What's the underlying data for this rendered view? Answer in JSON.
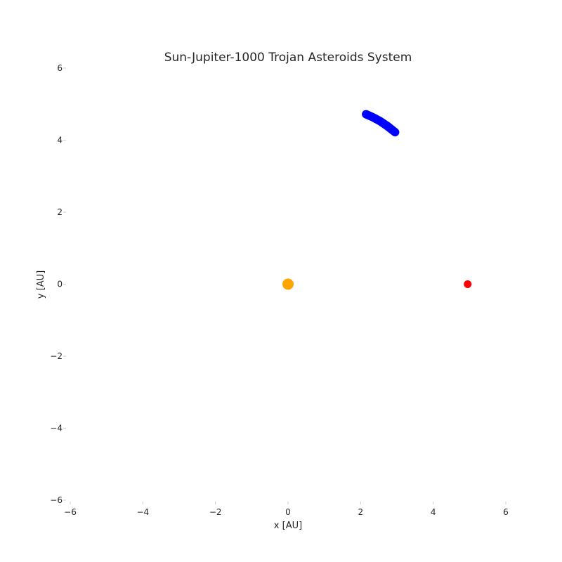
{
  "chart_data": {
    "type": "scatter",
    "title": "Sun-Jupiter-1000 Trojan Asteroids System",
    "xlabel": "x [AU]",
    "ylabel": "y [AU]",
    "xlim": [
      -6,
      6
    ],
    "ylim": [
      -6,
      6
    ],
    "xticks": [
      "−6",
      "−4",
      "−2",
      "0",
      "2",
      "4",
      "6"
    ],
    "yticks": [
      "−6",
      "−4",
      "−2",
      "0",
      "2",
      "4",
      "6"
    ],
    "grid": false,
    "series": [
      {
        "color": "#0000ff",
        "shape": "arc",
        "points": [
          [
            2.15,
            4.72
          ],
          [
            2.35,
            4.63
          ],
          [
            2.55,
            4.52
          ],
          [
            2.75,
            4.38
          ],
          [
            2.95,
            4.22
          ]
        ]
      },
      {
        "color": "#ffa500",
        "shape": "dot",
        "points": [
          [
            0.0,
            0.0
          ]
        ]
      },
      {
        "color": "#ff0000",
        "shape": "dot",
        "points": [
          [
            4.95,
            0.0
          ]
        ]
      }
    ]
  }
}
